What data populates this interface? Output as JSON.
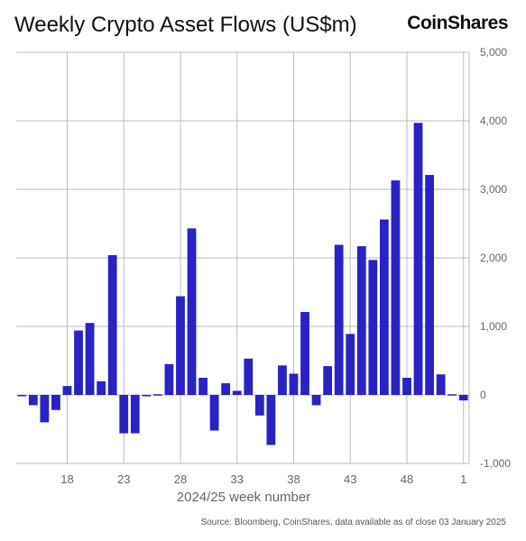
{
  "header": {
    "logo": "CoinShares"
  },
  "footer": {
    "source": "Source: Bloomberg, CoinShares, data available as of close 03 January 2025"
  },
  "colors": {
    "bar": "#2a22c4",
    "grid": "#bbbbbb",
    "text": "#666666"
  },
  "chart_data": {
    "type": "bar",
    "title": "Weekly Crypto Asset Flows (US$m)",
    "xlabel": "2024/25 week number",
    "ylabel": "",
    "ylim": [
      -1000,
      5000
    ],
    "y_ticks": [
      "5,000",
      "4,000",
      "3,000",
      "2,000",
      "1,000",
      "0",
      "-1,000"
    ],
    "y_tick_values": [
      5000,
      4000,
      3000,
      2000,
      1000,
      0,
      -1000
    ],
    "x_ticks": [
      "18",
      "23",
      "28",
      "33",
      "38",
      "43",
      "48",
      "1"
    ],
    "x_tick_categories": [
      18,
      23,
      28,
      33,
      38,
      43,
      48,
      1
    ],
    "grid": true,
    "categories": [
      14,
      15,
      16,
      17,
      18,
      19,
      20,
      21,
      22,
      23,
      24,
      25,
      26,
      27,
      28,
      29,
      30,
      31,
      32,
      33,
      34,
      35,
      36,
      37,
      38,
      39,
      40,
      41,
      42,
      43,
      44,
      45,
      46,
      47,
      48,
      49,
      50,
      51,
      52,
      1
    ],
    "values": [
      -20,
      -150,
      -400,
      -220,
      130,
      940,
      1050,
      200,
      2040,
      -560,
      -560,
      -20,
      0,
      450,
      1440,
      2430,
      250,
      -520,
      170,
      60,
      530,
      -300,
      -730,
      430,
      310,
      1210,
      -150,
      420,
      2190,
      890,
      2170,
      1970,
      2560,
      3130,
      250,
      3970,
      3210,
      300,
      0,
      -80
    ]
  }
}
